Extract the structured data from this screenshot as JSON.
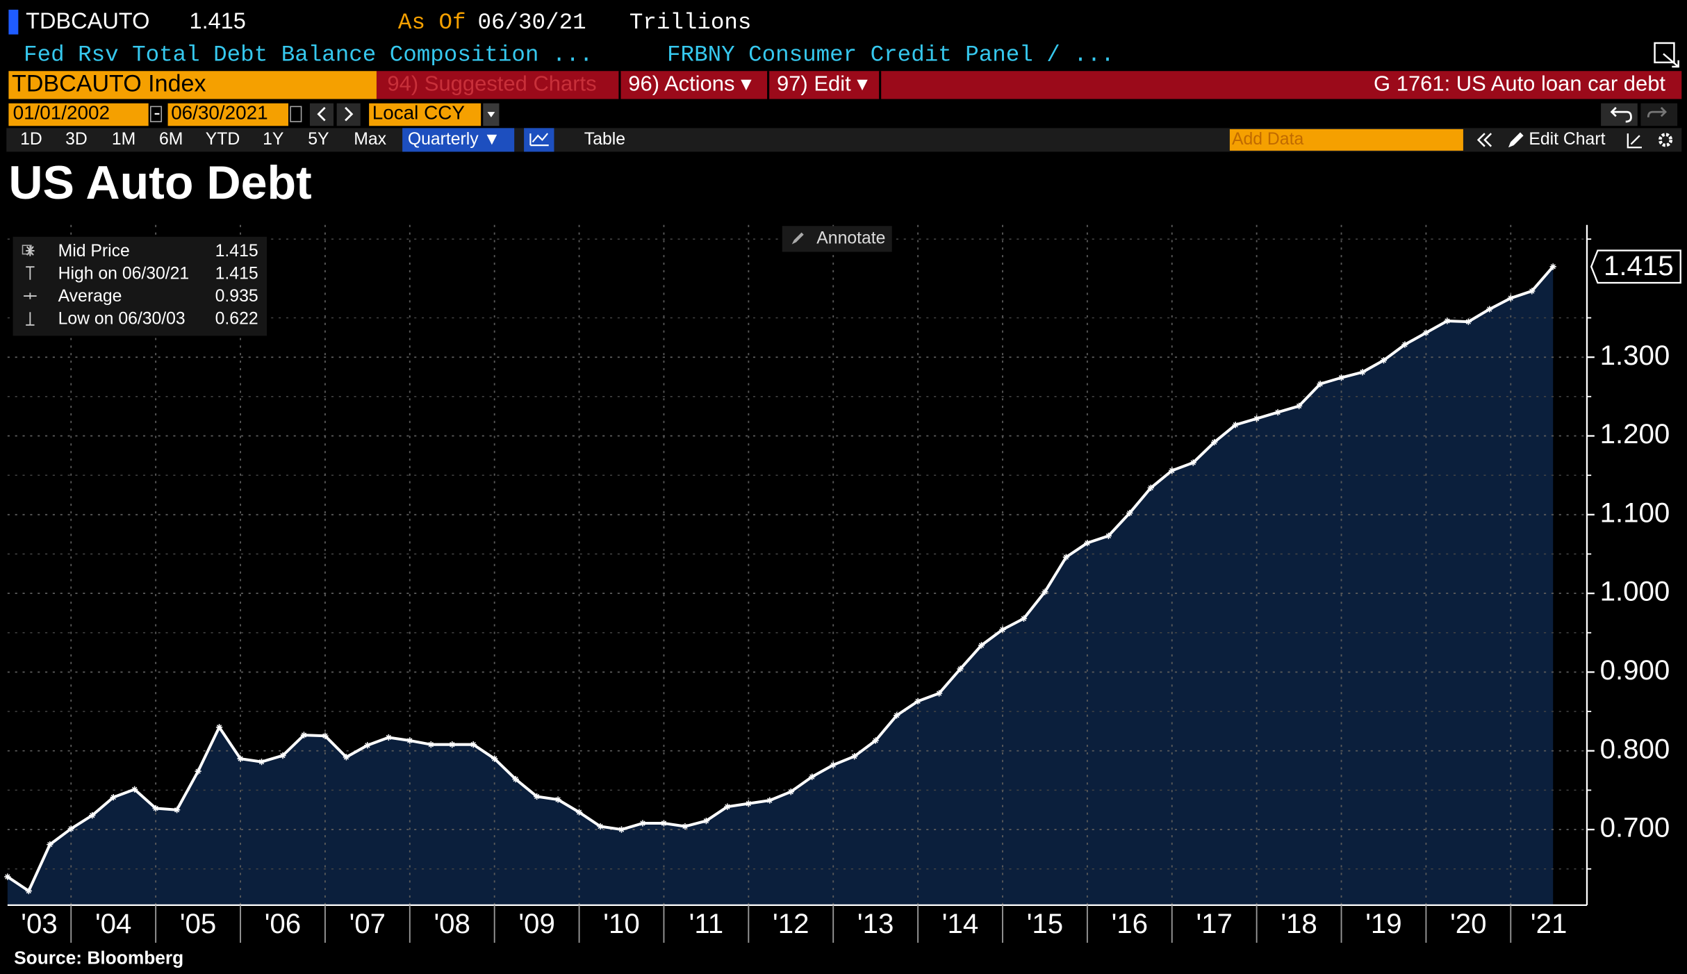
{
  "header": {
    "ticker": "TDBCAUTO",
    "value": 1.415,
    "as_of_label": "As Of",
    "as_of": "06/30/21",
    "units": "Trillions",
    "description": "Fed Rsv Total Debt Balance Composition ...",
    "source_name": "FRBNY Consumer Credit Panel / ..."
  },
  "menu": {
    "security": "TDBCAUTO Index",
    "suggested": "94) Suggested Charts",
    "actions": "96) Actions ▾",
    "edit": "97) Edit ▾",
    "page": "G 1761: US Auto loan car debt"
  },
  "range": {
    "start": "01/01/2002",
    "separator": "-",
    "end": "06/30/2021",
    "currency": "Local CCY"
  },
  "toolbar": {
    "periods": [
      "1D",
      "3D",
      "1M",
      "6M",
      "YTD",
      "1Y",
      "5Y",
      "Max"
    ],
    "frequency": "Quarterly ▼",
    "table": "Table",
    "add_data": "Add Data",
    "edit_chart": "Edit Chart",
    "annotate": "Annotate"
  },
  "chart_data": {
    "type": "area",
    "title": "US Auto Debt",
    "x": [
      2003.25,
      2003.5,
      2003.75,
      2004,
      2004.25,
      2004.5,
      2004.75,
      2005,
      2005.25,
      2005.5,
      2005.75,
      2006,
      2006.25,
      2006.5,
      2006.75,
      2007,
      2007.25,
      2007.5,
      2007.75,
      2008,
      2008.25,
      2008.5,
      2008.75,
      2009,
      2009.25,
      2009.5,
      2009.75,
      2010,
      2010.25,
      2010.5,
      2010.75,
      2011,
      2011.25,
      2011.5,
      2011.75,
      2012,
      2012.25,
      2012.5,
      2012.75,
      2013,
      2013.25,
      2013.5,
      2013.75,
      2014,
      2014.25,
      2014.5,
      2014.75,
      2015,
      2015.25,
      2015.5,
      2015.75,
      2016,
      2016.25,
      2016.5,
      2016.75,
      2017,
      2017.25,
      2017.5,
      2017.75,
      2018,
      2018.25,
      2018.5,
      2018.75,
      2019,
      2019.25,
      2019.5,
      2019.75,
      2020,
      2020.25,
      2020.5,
      2020.75,
      2021,
      2021.25,
      2021.5
    ],
    "series": [
      {
        "name": "Mid Price",
        "color": "#ffffff",
        "fill": "#0b1f3c",
        "values": [
          0.64,
          0.622,
          0.681,
          0.701,
          0.718,
          0.741,
          0.751,
          0.727,
          0.725,
          0.774,
          0.83,
          0.79,
          0.786,
          0.794,
          0.82,
          0.819,
          0.792,
          0.807,
          0.817,
          0.813,
          0.808,
          0.808,
          0.808,
          0.79,
          0.764,
          0.742,
          0.738,
          0.722,
          0.704,
          0.7,
          0.708,
          0.708,
          0.704,
          0.711,
          0.729,
          0.733,
          0.737,
          0.748,
          0.767,
          0.782,
          0.793,
          0.813,
          0.845,
          0.863,
          0.873,
          0.904,
          0.934,
          0.954,
          0.968,
          1.002,
          1.046,
          1.064,
          1.073,
          1.102,
          1.134,
          1.156,
          1.166,
          1.192,
          1.214,
          1.222,
          1.23,
          1.238,
          1.266,
          1.274,
          1.281,
          1.296,
          1.316,
          1.331,
          1.346,
          1.345,
          1.361,
          1.375,
          1.384,
          1.415
        ]
      }
    ],
    "xlim": [
      2003.25,
      2021.9
    ],
    "xticks": [
      {
        "value": 2003,
        "label": "'03"
      },
      {
        "value": 2004,
        "label": "'04"
      },
      {
        "value": 2005,
        "label": "'05"
      },
      {
        "value": 2006,
        "label": "'06"
      },
      {
        "value": 2007,
        "label": "'07"
      },
      {
        "value": 2008,
        "label": "'08"
      },
      {
        "value": 2009,
        "label": "'09"
      },
      {
        "value": 2010,
        "label": "'10"
      },
      {
        "value": 2011,
        "label": "'11"
      },
      {
        "value": 2012,
        "label": "'12"
      },
      {
        "value": 2013,
        "label": "'13"
      },
      {
        "value": 2014,
        "label": "'14"
      },
      {
        "value": 2015,
        "label": "'15"
      },
      {
        "value": 2016,
        "label": "'16"
      },
      {
        "value": 2017,
        "label": "'17"
      },
      {
        "value": 2018,
        "label": "'18"
      },
      {
        "value": 2019,
        "label": "'19"
      },
      {
        "value": 2020,
        "label": "'20"
      },
      {
        "value": 2021,
        "label": "'21"
      }
    ],
    "ylim": [
      0.604,
      1.468
    ],
    "yticks": [
      {
        "value": 0.7,
        "label": "0.700"
      },
      {
        "value": 0.8,
        "label": "0.800"
      },
      {
        "value": 0.9,
        "label": "0.900"
      },
      {
        "value": 1.0,
        "label": "1.000"
      },
      {
        "value": 1.1,
        "label": "1.100"
      },
      {
        "value": 1.2,
        "label": "1.200"
      },
      {
        "value": 1.3,
        "label": "1.300"
      }
    ],
    "yminorticks": [
      0.65,
      0.75,
      0.85,
      0.95,
      1.05,
      1.15,
      1.25,
      1.35,
      1.45
    ],
    "grid": true,
    "legend": [
      {
        "label": "Mid Price",
        "value": 1.415
      },
      {
        "label": "High on 06/30/21",
        "value": 1.415
      },
      {
        "label": "Average",
        "value": 0.935
      },
      {
        "label": "Low on 06/30/03",
        "value": 0.622
      }
    ],
    "last_label": 1.415
  },
  "footer": {
    "source": "Source: Bloomberg"
  }
}
